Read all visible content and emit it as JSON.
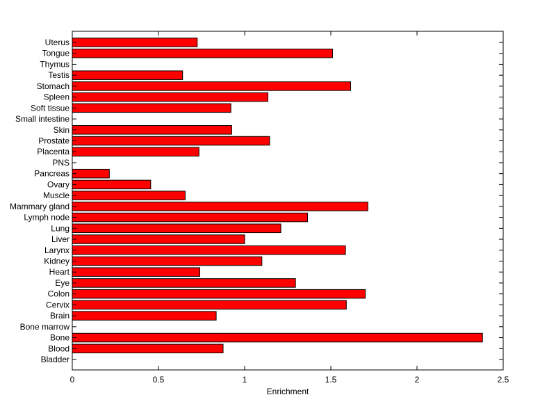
{
  "chart_data": {
    "type": "bar",
    "orientation": "horizontal",
    "title": "",
    "xlabel": "Enrichment",
    "ylabel": "",
    "xlim": [
      0,
      2.5
    ],
    "xticks": [
      "0",
      "0.5",
      "1",
      "1.5",
      "2",
      "2.5"
    ],
    "grid": false,
    "bar_color": "#ff0000",
    "edge_color": "#000000",
    "categories": [
      "Bladder",
      "Blood",
      "Bone",
      "Bone marrow",
      "Brain",
      "Cervix",
      "Colon",
      "Eye",
      "Heart",
      "Kidney",
      "Larynx",
      "Liver",
      "Lung",
      "Lymph node",
      "Mammary gland",
      "Muscle",
      "Ovary",
      "Pancreas",
      "PNS",
      "Placenta",
      "Prostate",
      "Skin",
      "Small intestine",
      "Soft tissue",
      "Spleen",
      "Stomach",
      "Testis",
      "Thymus",
      "Tongue",
      "Uterus"
    ],
    "values": [
      0,
      0.875,
      2.38,
      0,
      0.835,
      1.59,
      1.7,
      1.295,
      0.74,
      1.1,
      1.585,
      1.0,
      1.21,
      1.365,
      1.715,
      0.655,
      0.455,
      0.215,
      0,
      0.735,
      1.145,
      0.925,
      0,
      0.92,
      1.135,
      1.615,
      0.64,
      0,
      1.51,
      0.725
    ]
  }
}
